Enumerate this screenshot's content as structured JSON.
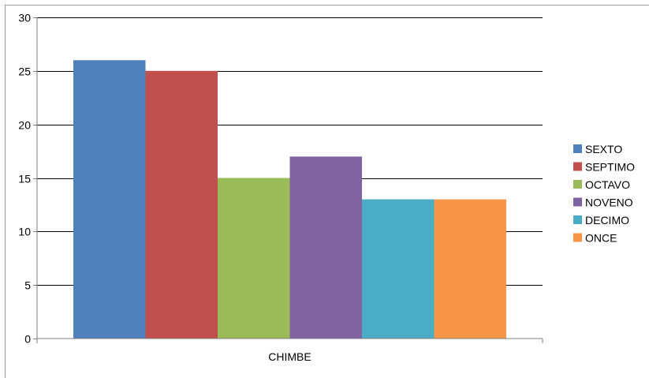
{
  "chart_data": {
    "type": "bar",
    "categories": [
      "CHIMBE"
    ],
    "series": [
      {
        "name": "SEXTO",
        "values": [
          26
        ],
        "color": "#4f81bd"
      },
      {
        "name": "SEPTIMO",
        "values": [
          25
        ],
        "color": "#c0504d"
      },
      {
        "name": "OCTAVO",
        "values": [
          15
        ],
        "color": "#9bbb59"
      },
      {
        "name": "NOVENO",
        "values": [
          17
        ],
        "color": "#8064a2"
      },
      {
        "name": "DECIMO",
        "values": [
          13
        ],
        "color": "#4bacc6"
      },
      {
        "name": "ONCE",
        "values": [
          13
        ],
        "color": "#f79646"
      }
    ],
    "yticks": [
      "0",
      "5",
      "10",
      "15",
      "20",
      "25",
      "30"
    ],
    "ylim": [
      0,
      30
    ],
    "grid": true,
    "legend": "right",
    "title": "",
    "xlabel": "",
    "ylabel": ""
  }
}
